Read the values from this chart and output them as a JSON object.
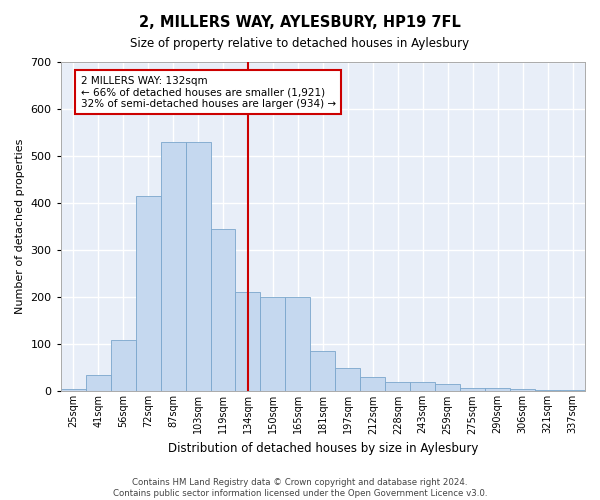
{
  "title": "2, MILLERS WAY, AYLESBURY, HP19 7FL",
  "subtitle": "Size of property relative to detached houses in Aylesbury",
  "xlabel": "Distribution of detached houses by size in Aylesbury",
  "ylabel": "Number of detached properties",
  "bar_color": "#c5d8ef",
  "bar_edge_color": "#7aa6cc",
  "background_color": "#e8eef8",
  "grid_color": "#ffffff",
  "categories": [
    "25sqm",
    "41sqm",
    "56sqm",
    "72sqm",
    "87sqm",
    "103sqm",
    "119sqm",
    "134sqm",
    "150sqm",
    "165sqm",
    "181sqm",
    "197sqm",
    "212sqm",
    "228sqm",
    "243sqm",
    "259sqm",
    "275sqm",
    "290sqm",
    "306sqm",
    "321sqm",
    "337sqm"
  ],
  "values": [
    5,
    35,
    110,
    415,
    530,
    530,
    345,
    210,
    200,
    200,
    85,
    50,
    30,
    20,
    20,
    15,
    8,
    8,
    5,
    3,
    3
  ],
  "property_line_color": "#cc0000",
  "annotation_text": "2 MILLERS WAY: 132sqm\n← 66% of detached houses are smaller (1,921)\n32% of semi-detached houses are larger (934) →",
  "annotation_box_color": "#cc0000",
  "footer_text": "Contains HM Land Registry data © Crown copyright and database right 2024.\nContains public sector information licensed under the Open Government Licence v3.0.",
  "ylim": [
    0,
    700
  ],
  "yticks": [
    0,
    100,
    200,
    300,
    400,
    500,
    600,
    700
  ]
}
